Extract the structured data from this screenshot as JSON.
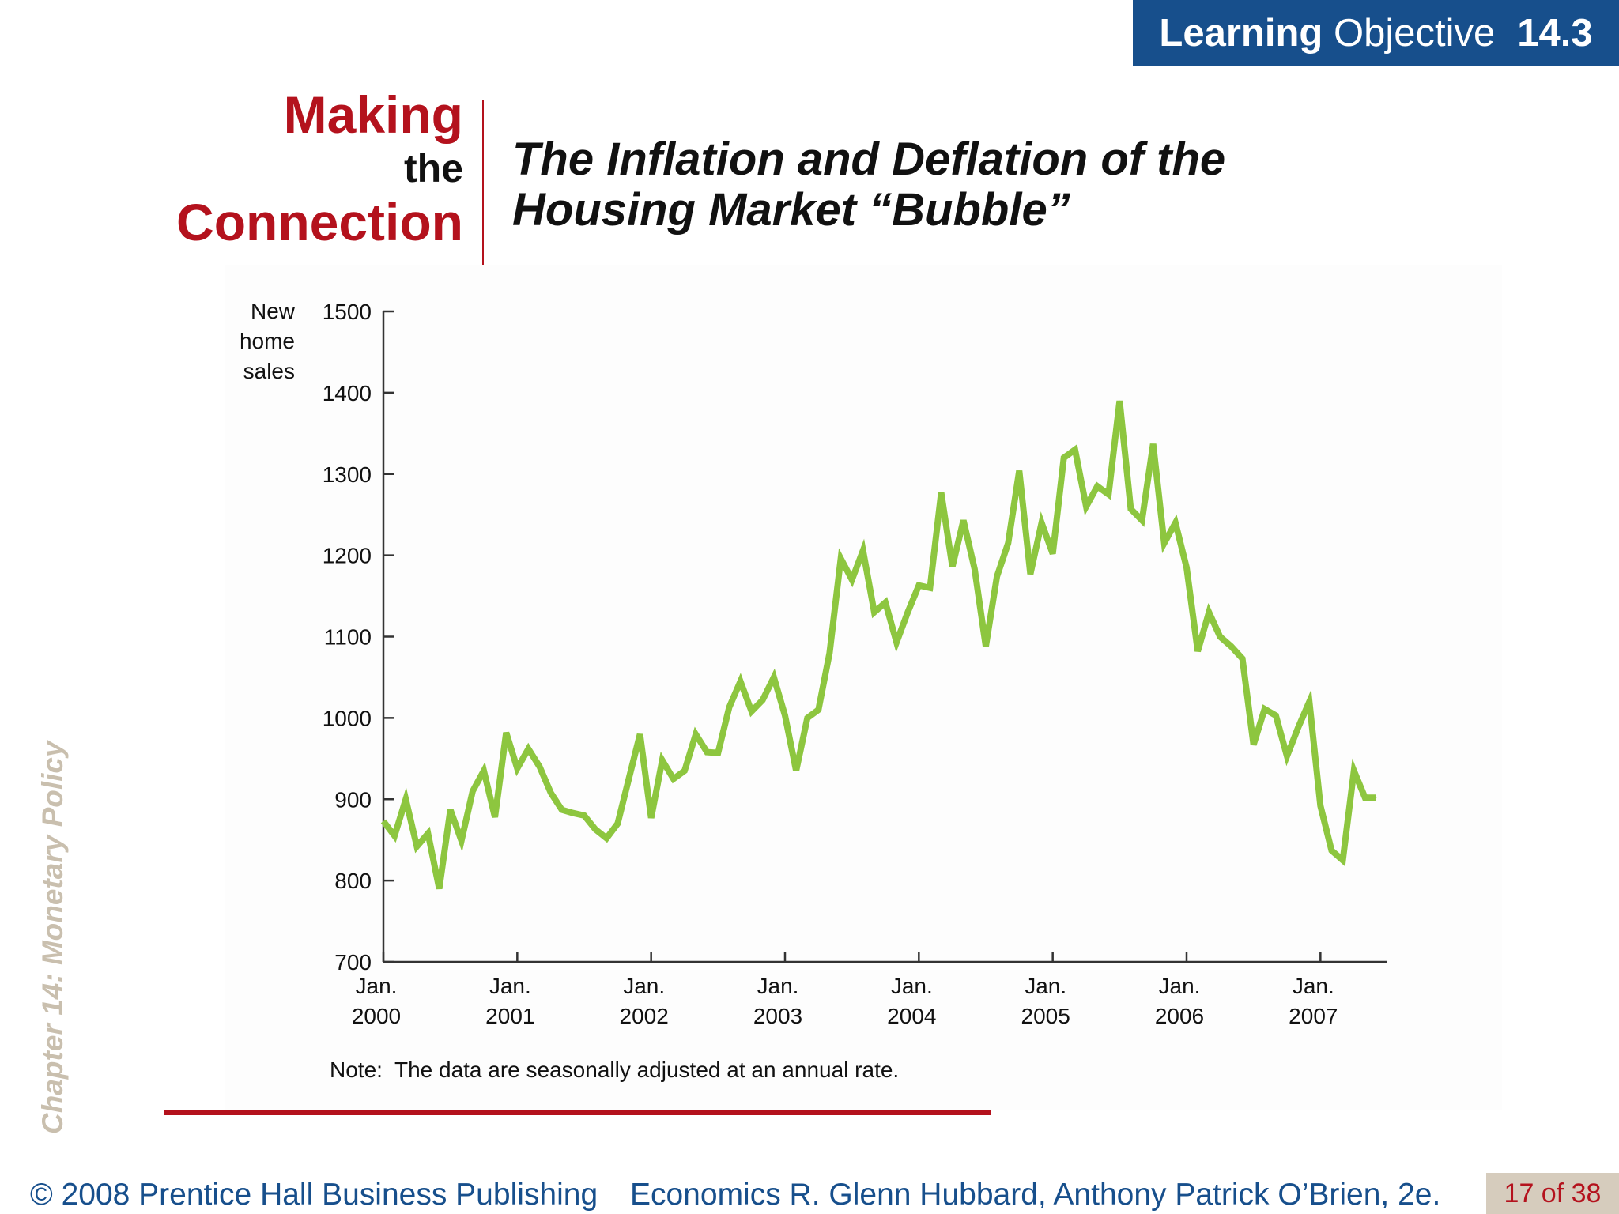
{
  "learning_objective": {
    "label_strong": "Learning",
    "label_rest": "Objective",
    "number": "14.3"
  },
  "making_connection": {
    "line1": "Making",
    "line2": "the",
    "line3": "Connection"
  },
  "title_line1": "The Inflation and Deflation of the",
  "title_line2": "Housing Market “Bubble”",
  "side_label": "Chapter 14:  Monetary Policy",
  "footer": {
    "copyright": "© 2008 Prentice Hall Business Publishing",
    "book": "Economics  R. Glenn Hubbard, Anthony Patrick O’Brien, 2e.",
    "page": "17 of 38"
  },
  "colors": {
    "accent_red": "#b4121d",
    "badge_blue": "#174f8c",
    "series_green": "#8dc63f",
    "side_label": "#c9bfae"
  },
  "chart_data": {
    "type": "line",
    "ylabel_lines": [
      "New",
      "home",
      "sales"
    ],
    "ylim": [
      700,
      1500
    ],
    "yticks": [
      700,
      800,
      900,
      1000,
      1100,
      1200,
      1300,
      1400,
      1500
    ],
    "xlim": [
      2000.0,
      2007.5
    ],
    "xticks": [
      {
        "year": 2000,
        "label": [
          "Jan.",
          "2000"
        ]
      },
      {
        "year": 2001,
        "label": [
          "Jan.",
          "2001"
        ]
      },
      {
        "year": 2002,
        "label": [
          "Jan.",
          "2002"
        ]
      },
      {
        "year": 2003,
        "label": [
          "Jan.",
          "2003"
        ]
      },
      {
        "year": 2004,
        "label": [
          "Jan.",
          "2004"
        ]
      },
      {
        "year": 2005,
        "label": [
          "Jan.",
          "2005"
        ]
      },
      {
        "year": 2006,
        "label": [
          "Jan.",
          "2006"
        ]
      },
      {
        "year": 2007,
        "label": [
          "Jan.",
          "2007"
        ]
      }
    ],
    "note": "Note:  The data are seasonally adjusted at an annual rate.",
    "grid": false,
    "series": [
      {
        "x": [
          2000.0,
          2000.083,
          2000.167,
          2000.25,
          2000.333,
          2000.417,
          2000.5,
          2000.583,
          2000.667,
          2000.75,
          2000.833,
          2000.917,
          2001.0,
          2001.083,
          2001.167,
          2001.25,
          2001.333,
          2001.417,
          2001.5,
          2001.583,
          2001.667,
          2001.75,
          2001.833,
          2001.917,
          2002.0,
          2002.083,
          2002.167,
          2002.25,
          2002.333,
          2002.417,
          2002.5,
          2002.583,
          2002.667,
          2002.75,
          2002.833,
          2002.917,
          2003.0,
          2003.083,
          2003.167,
          2003.25,
          2003.333,
          2003.417,
          2003.5,
          2003.583,
          2003.667,
          2003.75,
          2003.833,
          2003.917,
          2004.0,
          2004.083,
          2004.167,
          2004.25,
          2004.333,
          2004.417,
          2004.5,
          2004.583,
          2004.667,
          2004.75,
          2004.833,
          2004.917,
          2005.0,
          2005.083,
          2005.167,
          2005.25,
          2005.333,
          2005.417,
          2005.5,
          2005.583,
          2005.667,
          2005.75,
          2005.833,
          2005.917,
          2006.0,
          2006.083,
          2006.167,
          2006.25,
          2006.333,
          2006.417,
          2006.5,
          2006.583,
          2006.667,
          2006.75,
          2006.833,
          2006.917,
          2007.0,
          2007.083,
          2007.167,
          2007.25,
          2007.333,
          2007.417
        ],
        "values": [
          873,
          855,
          900,
          842,
          858,
          790,
          887,
          849,
          910,
          935,
          878,
          982,
          938,
          962,
          940,
          908,
          887,
          883,
          880,
          863,
          852,
          870,
          925,
          980,
          877,
          948,
          925,
          935,
          980,
          958,
          957,
          1013,
          1045,
          1008,
          1022,
          1050,
          1003,
          935,
          1000,
          1010,
          1080,
          1196,
          1170,
          1206,
          1130,
          1142,
          1093,
          1130,
          1163,
          1160,
          1277,
          1186,
          1243,
          1183,
          1088,
          1174,
          1215,
          1304,
          1177,
          1240,
          1202,
          1320,
          1330,
          1260,
          1285,
          1275,
          1390,
          1257,
          1243,
          1337,
          1215,
          1240,
          1185,
          1082,
          1130,
          1100,
          1088,
          1073,
          967,
          1011,
          1003,
          953,
          988,
          1020,
          892,
          837,
          825,
          935,
          902,
          902
        ]
      }
    ]
  }
}
